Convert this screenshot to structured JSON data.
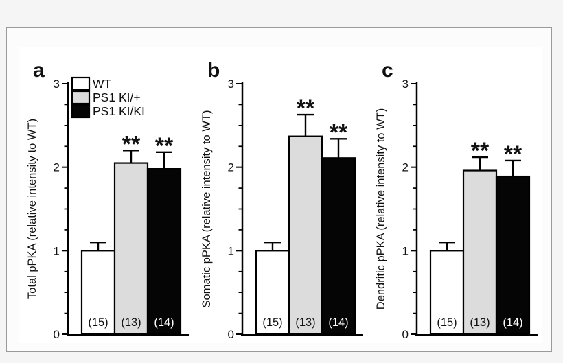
{
  "figure": {
    "description": "Three-panel bar figure of pPKA immunoreactivity relative to WT",
    "colors": {
      "background": "#f5f5f6",
      "frame_border": "#9a9a9a",
      "canvas": "#ffffff",
      "axis": "#000000",
      "text": "#111111"
    },
    "legend": {
      "items": [
        {
          "label": "WT",
          "fill": "#ffffff"
        },
        {
          "label": "PS1 KI/+",
          "fill": "#dcdcdc"
        },
        {
          "label": "PS1 KI/KI",
          "fill": "#050505"
        }
      ]
    }
  },
  "chart_data": [
    {
      "type": "bar",
      "panel_label": "a",
      "title": "",
      "xlabel": "",
      "ylabel": "Total pPKA (relative intensity to WT)",
      "categories": [
        "WT",
        "PS1 KI/+",
        "PS1 KI/KI"
      ],
      "values": [
        1.0,
        2.05,
        1.98
      ],
      "errors_upper": [
        0.1,
        0.15,
        0.2
      ],
      "significance": [
        "",
        "**",
        "**"
      ],
      "sample_sizes": [
        "(15)",
        "(13)",
        "(14)"
      ],
      "ylim": [
        0,
        3
      ],
      "yticks": [
        0,
        1,
        2,
        3
      ],
      "minor_tick_step": 0.25,
      "bar_fills": [
        "#ffffff",
        "#dcdcdc",
        "#050505"
      ],
      "bar_stroke": "#000000",
      "n_label_colors": [
        "#111111",
        "#111111",
        "#ffffff"
      ],
      "show_legend": true,
      "grid": false
    },
    {
      "type": "bar",
      "panel_label": "b",
      "title": "",
      "xlabel": "",
      "ylabel": "Somatic pPKA (relative intensity to WT)",
      "categories": [
        "WT",
        "PS1 KI/+",
        "PS1 KI/KI"
      ],
      "values": [
        1.0,
        2.37,
        2.11
      ],
      "errors_upper": [
        0.1,
        0.26,
        0.23
      ],
      "significance": [
        "",
        "**",
        "**"
      ],
      "sample_sizes": [
        "(15)",
        "(13)",
        "(14)"
      ],
      "ylim": [
        0,
        3
      ],
      "yticks": [
        0,
        1,
        2,
        3
      ],
      "minor_tick_step": 0.25,
      "bar_fills": [
        "#ffffff",
        "#dcdcdc",
        "#050505"
      ],
      "bar_stroke": "#000000",
      "n_label_colors": [
        "#111111",
        "#111111",
        "#ffffff"
      ],
      "show_legend": false,
      "grid": false
    },
    {
      "type": "bar",
      "panel_label": "c",
      "title": "",
      "xlabel": "",
      "ylabel": "Dendritic pPKA (relative intensity to WT)",
      "categories": [
        "WT",
        "PS1 KI/+",
        "PS1 KI/KI"
      ],
      "values": [
        1.0,
        1.96,
        1.89
      ],
      "errors_upper": [
        0.1,
        0.16,
        0.19
      ],
      "significance": [
        "",
        "**",
        "**"
      ],
      "sample_sizes": [
        "(15)",
        "(13)",
        "(14)"
      ],
      "ylim": [
        0,
        3
      ],
      "yticks": [
        0,
        1,
        2,
        3
      ],
      "minor_tick_step": 0.25,
      "bar_fills": [
        "#ffffff",
        "#dcdcdc",
        "#050505"
      ],
      "bar_stroke": "#000000",
      "n_label_colors": [
        "#111111",
        "#111111",
        "#ffffff"
      ],
      "show_legend": false,
      "grid": false
    }
  ]
}
